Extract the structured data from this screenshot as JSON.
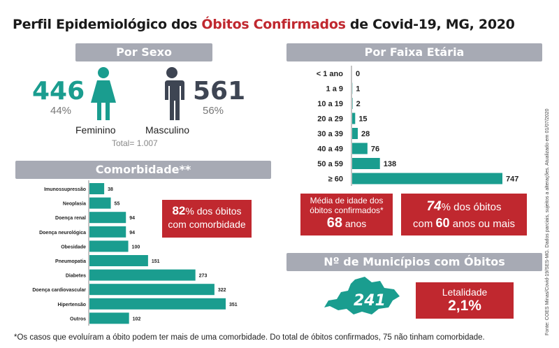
{
  "title": {
    "part1": "Perfil Epidemiológico dos ",
    "highlight": "Óbitos Confirmados",
    "part2": " de Covid-19, MG, 2020"
  },
  "sexo": {
    "header": "Por Sexo",
    "feminino": {
      "count": "446",
      "pct": "44%",
      "label": "Feminino"
    },
    "masculino": {
      "count": "561",
      "pct": "56%",
      "label": "Masculino"
    },
    "total": "Total= 1.007"
  },
  "faixa": {
    "header": "Por Faixa Etária"
  },
  "comorbidade": {
    "header": "Comorbidade**"
  },
  "comorb_box": {
    "pct": "82",
    "line1": "% dos óbitos",
    "line2": "com comorbidade"
  },
  "media_box": {
    "line1": "Média de idade dos",
    "line2": "óbitos confirmados*",
    "value": "68",
    "unit": " anos"
  },
  "idosos_box": {
    "pct": "74",
    "line1": "% dos óbitos",
    "line2a": "com ",
    "value": "60",
    "line2b": " anos ou mais"
  },
  "municipios": {
    "header": "Nº de Municípios com Óbitos",
    "count": "241"
  },
  "letalidade": {
    "label": "Letalidade",
    "value": "2,1%"
  },
  "footnote": "*Os casos que evoluíram a óbito podem ter mais de uma comorbidade. Do total de óbitos confirmados, 75 não tinham comorbidade.",
  "source": "Fonte: COES Minas/Covid-19/SES-MG. Dados parciais, sujeitos a alterações. Atualizado em 01/07/2020",
  "colors": {
    "teal": "#1a9d8f",
    "red": "#c0282f",
    "gray": "#a7aab4",
    "dark": "#3e4553"
  },
  "chart_data": [
    {
      "type": "bar",
      "orientation": "horizontal",
      "categories": [
        "< 1 ano",
        "1 a 9",
        "10 a 19",
        "20 a 29",
        "30 a 39",
        "40 a 49",
        "50 a 59",
        "≥ 60"
      ],
      "values": [
        0,
        1,
        2,
        15,
        28,
        76,
        138,
        747
      ],
      "title": "Por Faixa Etária"
    },
    {
      "type": "bar",
      "orientation": "horizontal",
      "categories": [
        "Imunossupressão",
        "Neoplasia",
        "Doença renal",
        "Doença neurológica",
        "Obesidade",
        "Pneumopatia",
        "Diabetes",
        "Doença cardiovascular",
        "Hipertensão",
        "Outros"
      ],
      "values": [
        38,
        55,
        94,
        94,
        100,
        151,
        273,
        322,
        351,
        102
      ],
      "title": "Comorbidade**"
    }
  ]
}
